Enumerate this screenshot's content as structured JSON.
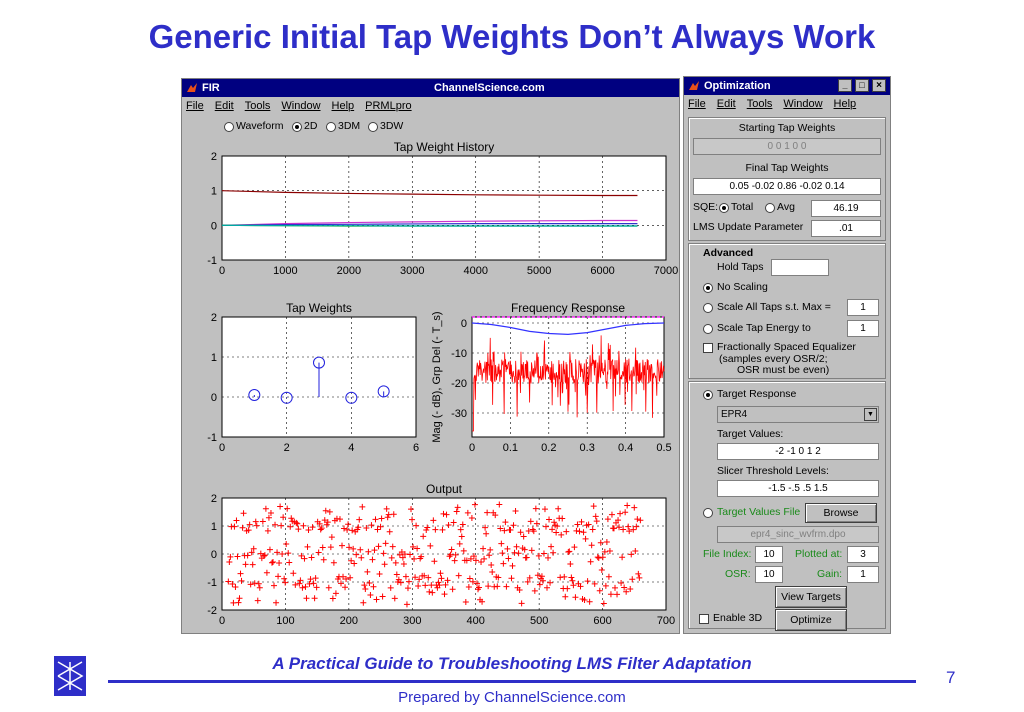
{
  "slide": {
    "title": "Generic Initial Tap Weights Don’t Always Work",
    "footer_title": "A Practical Guide to Troubleshooting LMS Filter Adaptation",
    "prepared_by": "Prepared by ChannelScience.com",
    "page_number": "7"
  },
  "fir_window": {
    "title": "FIR",
    "brand": "ChannelScience.com",
    "menu": [
      "File",
      "Edit",
      "Tools",
      "Window",
      "Help",
      "PRMLpro"
    ],
    "view_options": [
      "Waveform",
      "2D",
      "3DM",
      "3DW"
    ],
    "selected_view": "2D"
  },
  "optimization_window": {
    "title": "Optimization",
    "menu": [
      "File",
      "Edit",
      "Tools",
      "Window",
      "Help"
    ],
    "starting_tap_weights_label": "Starting Tap Weights",
    "starting_tap_weights": "0 0 1 0 0",
    "final_tap_weights_label": "Final Tap Weights",
    "final_tap_weights": "0.05 -0.02 0.86 -0.02 0.14",
    "sqe_label": "SQE:",
    "sqe_total_label": "Total",
    "sqe_avg_label": "Avg",
    "sqe_value": "46.19",
    "lms_label": "LMS Update Parameter",
    "lms_value": ".01",
    "advanced_label": "Advanced",
    "hold_taps_label": "Hold Taps",
    "hold_taps_value": "",
    "no_scaling_label": "No Scaling",
    "scale_all_label": "Scale All Taps s.t. Max =",
    "scale_all_value": "1",
    "scale_energy_label": "Scale Tap Energy to",
    "scale_energy_value": "1",
    "fse_label": "Fractionally Spaced Equalizer",
    "fse_note1": "(samples every OSR/2;",
    "fse_note2": "OSR must be even)",
    "target_response_label": "Target Response",
    "target_response_value": "EPR4",
    "target_values_label": "Target Values:",
    "target_values": "-2 -1 0 1 2",
    "slicer_label": "Slicer Threshold Levels:",
    "slicer_values": "-1.5 -.5 .5 1.5",
    "target_file_label": "Target Values File",
    "browse_label": "Browse",
    "target_file_value": "epr4_sinc_wvfrm.dpo",
    "file_index_label": "File Index:",
    "file_index_value": "10",
    "plotted_at_label": "Plotted at:",
    "plotted_at_value": "3",
    "osr_label": "OSR:",
    "osr_value": "10",
    "gain_label": "Gain:",
    "gain_value": "1",
    "view_targets_label": "View Targets",
    "enable_3d_label": "Enable 3D",
    "optimize_label": "Optimize"
  },
  "chart_data": [
    {
      "type": "line",
      "title": "Tap Weight History",
      "xlim": [
        0,
        7000
      ],
      "ylim": [
        -1,
        2
      ],
      "xticks": [
        "0",
        "1000",
        "2000",
        "3000",
        "4000",
        "5000",
        "6000",
        "7000"
      ],
      "yticks": [
        "-1",
        "0",
        "1",
        "2"
      ],
      "grid": true,
      "series": [
        {
          "color": "#8b0000",
          "x": [
            0,
            1000,
            2000,
            3000,
            4000,
            5000,
            6000,
            6550
          ],
          "y": [
            1.0,
            0.95,
            0.92,
            0.9,
            0.88,
            0.87,
            0.86,
            0.86
          ]
        },
        {
          "color": "#cc33cc",
          "x": [
            0,
            1000,
            2000,
            3000,
            4000,
            5000,
            6000,
            6550
          ],
          "y": [
            0.0,
            0.05,
            0.08,
            0.1,
            0.12,
            0.13,
            0.14,
            0.14
          ]
        },
        {
          "color": "#3333cc",
          "x": [
            0,
            1000,
            2000,
            3000,
            4000,
            5000,
            6000,
            6550
          ],
          "y": [
            0.0,
            0.02,
            0.03,
            0.04,
            0.05,
            0.05,
            0.05,
            0.05
          ]
        },
        {
          "color": "#00aa00",
          "x": [
            0,
            1000,
            2000,
            3000,
            4000,
            5000,
            6000,
            6550
          ],
          "y": [
            0.0,
            -0.01,
            -0.02,
            -0.02,
            -0.02,
            -0.02,
            -0.02,
            -0.02
          ]
        },
        {
          "color": "#00aaaa",
          "x": [
            0,
            1000,
            2000,
            3000,
            4000,
            5000,
            6000,
            6550
          ],
          "y": [
            0.0,
            -0.01,
            -0.01,
            -0.02,
            -0.02,
            -0.02,
            -0.02,
            -0.02
          ]
        }
      ]
    },
    {
      "type": "scatter",
      "title": "Tap Weights",
      "xlim": [
        0,
        6
      ],
      "ylim": [
        -1,
        2
      ],
      "xticks": [
        "0",
        "2",
        "4",
        "6"
      ],
      "yticks": [
        "-1",
        "0",
        "1",
        "2"
      ],
      "grid": true,
      "x": [
        1,
        2,
        3,
        4,
        5
      ],
      "y": [
        0.05,
        -0.02,
        0.86,
        -0.02,
        0.14
      ]
    },
    {
      "type": "line",
      "title": "Frequency Response",
      "ylabel": "Mag (- dB), Grp Del (- T_s)",
      "xlim": [
        0,
        0.5
      ],
      "ylim": [
        -38,
        2
      ],
      "xticks": [
        "0",
        "0.1",
        "0.2",
        "0.3",
        "0.4",
        "0.5"
      ],
      "yticks": [
        "0",
        "-10",
        "-20",
        "-30"
      ],
      "grid": true,
      "series": [
        {
          "color": "#3333ff",
          "x": [
            0,
            0.05,
            0.1,
            0.15,
            0.2,
            0.25,
            0.3,
            0.35,
            0.4,
            0.45,
            0.5
          ],
          "y": [
            0,
            -0.5,
            -1.5,
            -2.8,
            -3.5,
            -3.8,
            -3.2,
            -2.0,
            -0.8,
            -0.2,
            0
          ]
        },
        {
          "color": "#ff00ff",
          "dashed": true,
          "x": [
            0,
            0.5
          ],
          "y": [
            2,
            2
          ]
        }
      ]
    },
    {
      "type": "scatter",
      "title": "Output",
      "xlim": [
        0,
        700
      ],
      "ylim": [
        -2,
        2
      ],
      "xticks": [
        "0",
        "100",
        "200",
        "300",
        "400",
        "500",
        "600",
        "700"
      ],
      "yticks": [
        "-2",
        "-1",
        "0",
        "1",
        "2"
      ],
      "grid": true,
      "marker": "+",
      "color": "#ff0000",
      "levels": [
        -1,
        0,
        1
      ]
    }
  ]
}
